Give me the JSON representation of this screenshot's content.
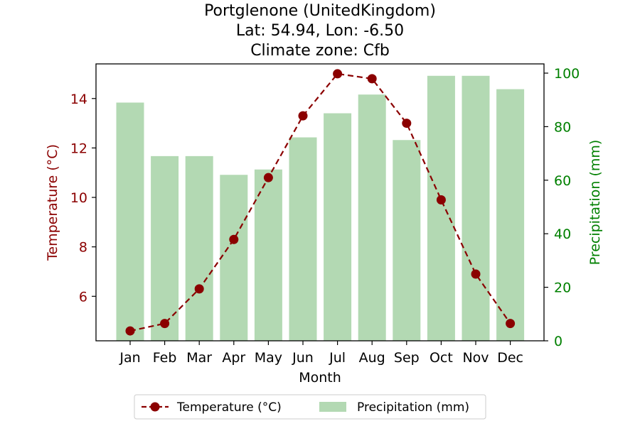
{
  "chart_data": {
    "type": "bar+line",
    "title_lines": [
      "Portglenone (UnitedKingdom)",
      "Lat: 54.94, Lon: -6.50",
      "Climate zone: Cfb"
    ],
    "xlabel": "Month",
    "ylabel_left": "Temperature (°C)",
    "ylabel_right": "Precipitation (mm)",
    "categories": [
      "Jan",
      "Feb",
      "Mar",
      "Apr",
      "May",
      "Jun",
      "Jul",
      "Aug",
      "Sep",
      "Oct",
      "Nov",
      "Dec"
    ],
    "ylim_left": [
      4.2,
      15.4
    ],
    "ylim_right": [
      0,
      100
    ],
    "yticks_left": [
      6,
      8,
      10,
      12,
      14
    ],
    "yticks_right": [
      0,
      20,
      40,
      60,
      80,
      100
    ],
    "series": [
      {
        "name": "Temperature (°C)",
        "kind": "line",
        "axis": "left",
        "color": "#8b0000",
        "style": "dashed-with-circle-markers",
        "values": [
          4.6,
          4.9,
          6.3,
          8.3,
          10.8,
          13.3,
          15.0,
          14.8,
          13.0,
          9.9,
          6.9,
          4.9
        ]
      },
      {
        "name": "Precipitation (mm)",
        "kind": "bar",
        "axis": "right",
        "color": "#b3d9b3",
        "values": [
          89,
          69,
          69,
          62,
          64,
          76,
          85,
          92,
          75,
          99,
          99,
          94
        ]
      }
    ],
    "colors": {
      "temperature_axis": "#8b0000",
      "precipitation_axis": "#008000"
    },
    "legend": {
      "placement": "bottom-center"
    },
    "grid": false
  }
}
